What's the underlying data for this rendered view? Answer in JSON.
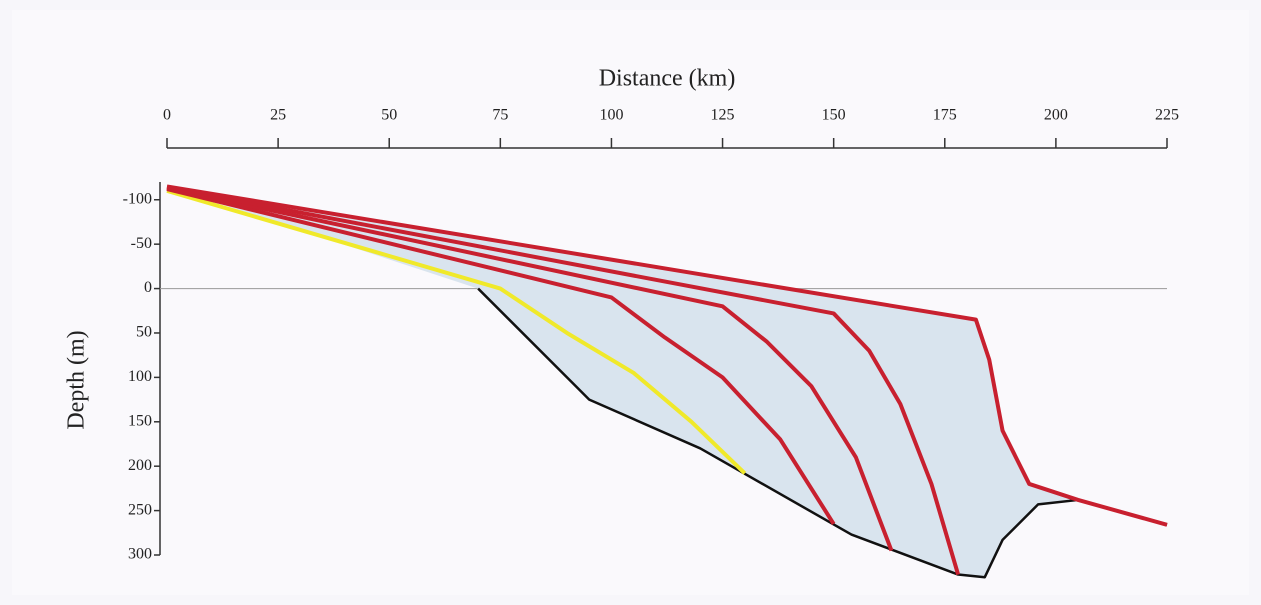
{
  "chart_data": {
    "type": "line",
    "x_label": "Distance (km)",
    "y_label": "Depth (m)",
    "xlim": [
      0,
      225
    ],
    "xticks": [
      0,
      25,
      50,
      75,
      100,
      125,
      150,
      175,
      200,
      225
    ],
    "ylim": [
      -120,
      300
    ],
    "yticks": [
      -100,
      -50,
      0,
      50,
      100,
      150,
      200,
      250,
      300
    ],
    "y_inverted": true,
    "body_fill": "#d9e4ee",
    "series": [
      {
        "color": "#111111",
        "x": [
          70,
          95,
          120,
          154,
          178,
          184,
          188,
          196,
          205,
          225
        ],
        "values": [
          0,
          125,
          180,
          277,
          322,
          325,
          283,
          243,
          238,
          266
        ]
      },
      {
        "color": "#f0e92a",
        "x": [
          0,
          75,
          90,
          105,
          118,
          130
        ],
        "values": [
          -110,
          0,
          50,
          95,
          150,
          208
        ]
      },
      {
        "color": "#c8202f",
        "x": [
          0,
          100,
          112,
          125,
          138,
          150
        ],
        "values": [
          -112,
          10,
          55,
          100,
          170,
          265
        ]
      },
      {
        "color": "#c8202f",
        "x": [
          0,
          125,
          135,
          145,
          155,
          163
        ],
        "values": [
          -113,
          20,
          60,
          110,
          190,
          295
        ]
      },
      {
        "color": "#c8202f",
        "x": [
          0,
          150,
          158,
          165,
          172,
          178
        ],
        "values": [
          -114,
          28,
          70,
          130,
          220,
          322
        ]
      },
      {
        "color": "#c8202f",
        "x": [
          0,
          182,
          185,
          188,
          194,
          205,
          225
        ],
        "values": [
          -115,
          35,
          80,
          160,
          220,
          238,
          266
        ]
      }
    ]
  }
}
